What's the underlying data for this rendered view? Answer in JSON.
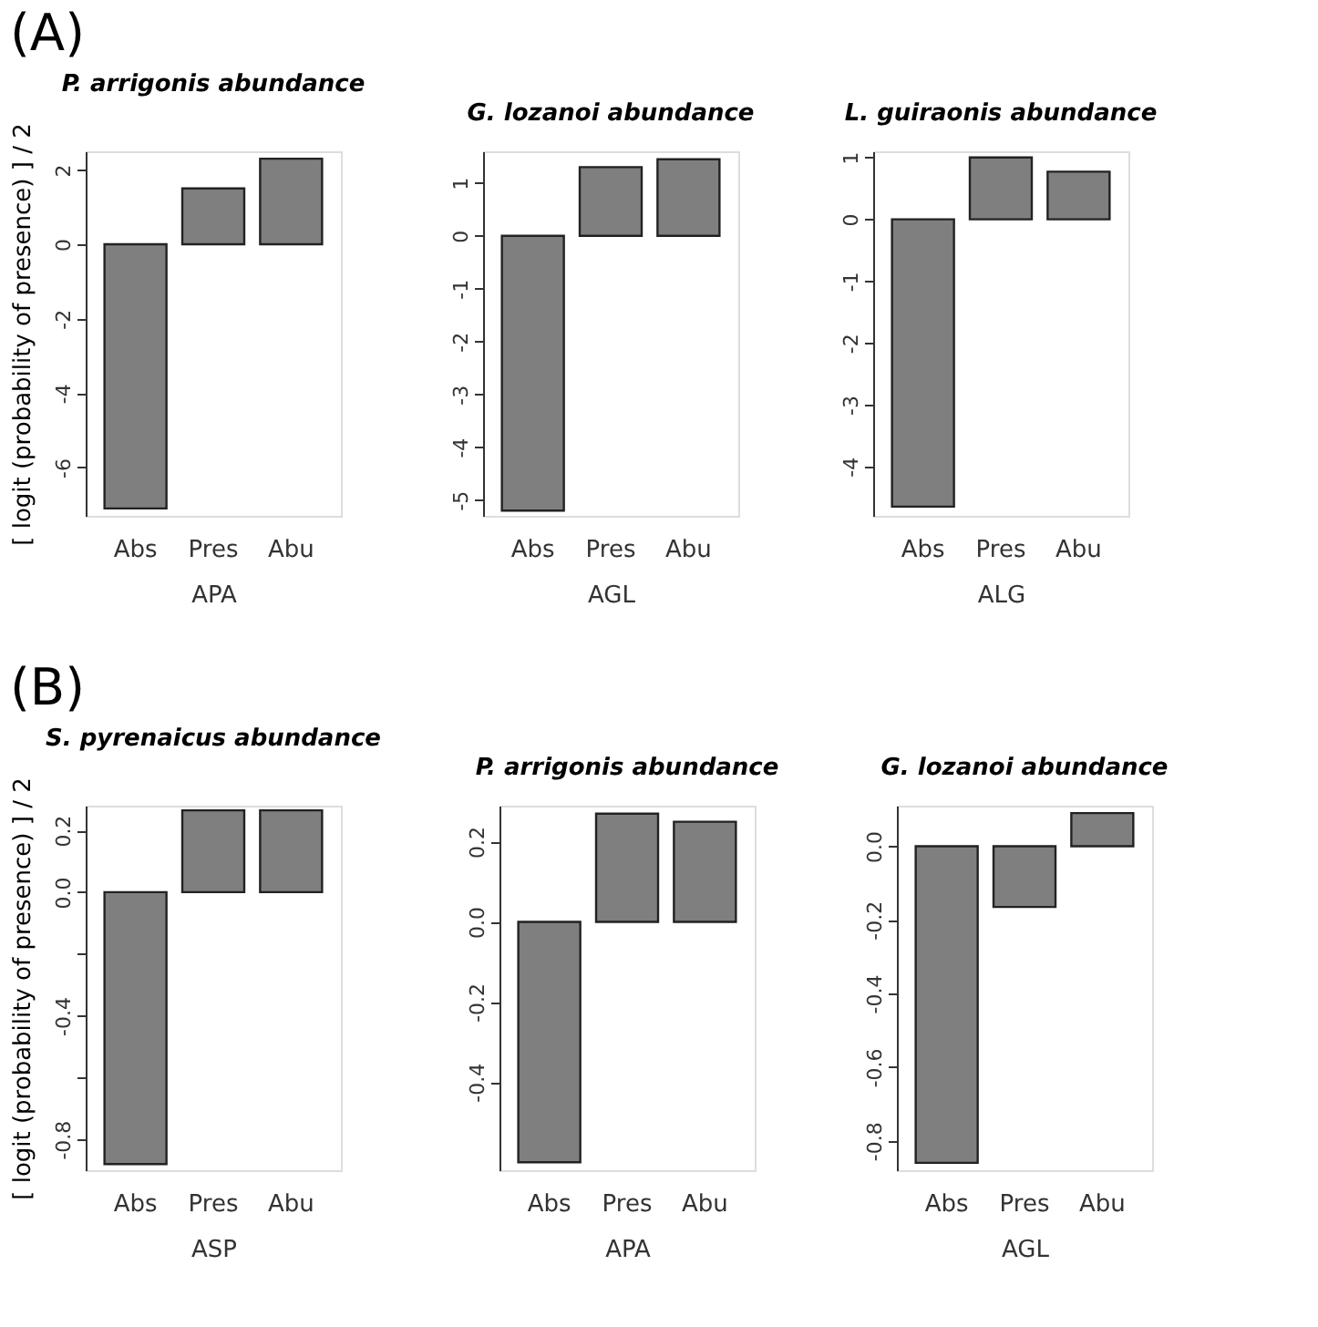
{
  "chart_data": [
    {
      "type": "bar",
      "title": "P. arrigonis abundance",
      "annotations": [
        "(A)"
      ],
      "xlabel": "APA",
      "ylabel": "[ logit (probability of presence) ] / 2",
      "categories": [
        "Abs",
        "Pres",
        "Abu"
      ],
      "values": [
        -7.1,
        1.5,
        2.3
      ],
      "color": "#7f7f7f",
      "ylim": [
        -7.3,
        2.5
      ],
      "yticks": [
        -6,
        -4,
        -2,
        0,
        2
      ],
      "grid": false
    },
    {
      "type": "bar",
      "title": "G. lozanoi abundance",
      "xlabel": "AGL",
      "categories": [
        "Abs",
        "Pres",
        "Abu"
      ],
      "values": [
        -5.2,
        1.3,
        1.45
      ],
      "color": "#7f7f7f",
      "ylim": [
        -5.3,
        1.6
      ],
      "yticks": [
        -5,
        -4,
        -3,
        -2,
        -1,
        0,
        1
      ],
      "grid": false
    },
    {
      "type": "bar",
      "title": "L. guiraonis abundance",
      "xlabel": "ALG",
      "categories": [
        "Abs",
        "Pres",
        "Abu"
      ],
      "values": [
        -4.65,
        1.0,
        0.77
      ],
      "color": "#7f7f7f",
      "ylim": [
        -4.8,
        1.1
      ],
      "yticks": [
        -4,
        -3,
        -2,
        -1,
        0,
        1
      ],
      "grid": false
    },
    {
      "type": "bar",
      "title": "S. pyrenaicus abundance",
      "annotations": [
        "(B)"
      ],
      "xlabel": "ASP",
      "ylabel": "[ logit (probability of presence) ] / 2",
      "categories": [
        "Abs",
        "Pres",
        "Abu"
      ],
      "values": [
        -0.88,
        0.265,
        0.265
      ],
      "color": "#7f7f7f",
      "ylim": [
        -0.9,
        0.28
      ],
      "yticks": [
        {
          "value": -0.8,
          "label": "-0.8"
        },
        {
          "value": -0.6,
          "label": null
        },
        {
          "value": -0.4,
          "label": "-0.4"
        },
        {
          "value": -0.2,
          "label": null
        },
        {
          "value": 0,
          "label": "0.0"
        },
        {
          "value": 0.2,
          "label": "0.2"
        }
      ],
      "grid": false
    },
    {
      "type": "bar",
      "title": "P. arrigonis abundance",
      "xlabel": "APA",
      "categories": [
        "Abs",
        "Pres",
        "Abu"
      ],
      "values": [
        -0.6,
        0.27,
        0.25
      ],
      "color": "#7f7f7f",
      "ylim": [
        -0.62,
        0.29
      ],
      "yticks": [
        {
          "value": -0.4,
          "label": "-0.4"
        },
        {
          "value": -0.2,
          "label": "-0.2"
        },
        {
          "value": 0,
          "label": "0.0"
        },
        {
          "value": 0.2,
          "label": "0.2"
        }
      ],
      "grid": false
    },
    {
      "type": "bar",
      "title": "G. lozanoi abundance",
      "xlabel": "AGL",
      "categories": [
        "Abs",
        "Pres",
        "Abu"
      ],
      "values": [
        -0.86,
        -0.165,
        0.09
      ],
      "color": "#7f7f7f",
      "ylim": [
        -0.88,
        0.11
      ],
      "yticks": [
        {
          "value": -0.8,
          "label": "-0.8"
        },
        {
          "value": -0.6,
          "label": "-0.6"
        },
        {
          "value": -0.4,
          "label": "-0.4"
        },
        {
          "value": -0.2,
          "label": "-0.2"
        },
        {
          "value": 0,
          "label": "0.0"
        }
      ],
      "grid": false
    }
  ]
}
